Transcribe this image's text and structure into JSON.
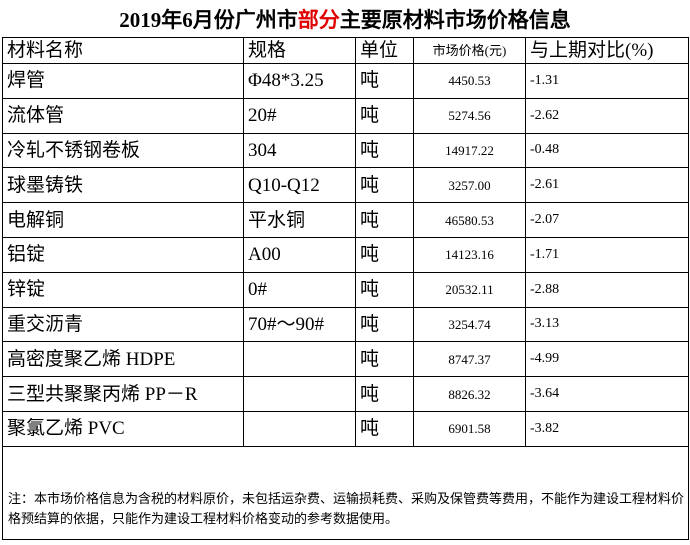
{
  "header": {
    "title_pre": "2019年6月份广州市",
    "title_highlight": "部分",
    "title_post": "主要原材料市场价格信息"
  },
  "table": {
    "columns": [
      "材料名称",
      "规格",
      "单位",
      "市场价格(元)",
      "与上期对比(%)"
    ],
    "rows": [
      [
        "焊管",
        "Φ48*3.25",
        "吨",
        "4450.53",
        "-1.31"
      ],
      [
        "流体管",
        "20#",
        "吨",
        "5274.56",
        "-2.62"
      ],
      [
        "冷轧不锈钢卷板",
        "304",
        "吨",
        "14917.22",
        "-0.48"
      ],
      [
        "球墨铸铁",
        "Q10-Q12",
        "吨",
        "3257.00",
        "-2.61"
      ],
      [
        "电解铜",
        "平水铜",
        "吨",
        "46580.53",
        "-2.07"
      ],
      [
        "铝锭",
        "A00",
        "吨",
        "14123.16",
        "-1.71"
      ],
      [
        "锌锭",
        "0#",
        "吨",
        "20532.11",
        "-2.88"
      ],
      [
        "重交沥青",
        "70#～90#",
        "吨",
        "3254.74",
        "-3.13"
      ],
      [
        "高密度聚乙烯 HDPE",
        "",
        "吨",
        "8747.37",
        "-4.99"
      ],
      [
        "三型共聚聚丙烯 PP－R",
        "",
        "吨",
        "8826.32",
        "-3.64"
      ],
      [
        "聚氯乙烯 PVC",
        "",
        "吨",
        "6901.58",
        "-3.82"
      ]
    ]
  },
  "note": "注：本市场价格信息为含税的材料原价，未包括运杂费、运输损耗费、采购及保管费等费用，不能作为建设工程材料价格预结算的依据，只能作为建设工程材料价格变动的参考数据使用。"
}
